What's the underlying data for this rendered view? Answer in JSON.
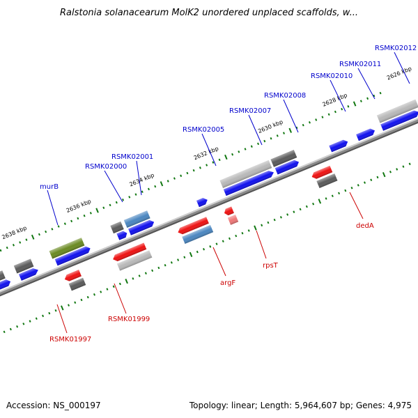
{
  "title": "Ralstonia solanacearum MolK2 unordered unplaced scaffolds, w...",
  "footer": {
    "accession": "Accession: NS_000197",
    "topology": "Topology: linear; Length: 5,964,607 bp; Genes: 4,975"
  },
  "colors": {
    "forward_label": "#0000cc",
    "reverse_label": "#cc0000",
    "tick": "#117711",
    "backbone": "#888888",
    "blue": "#1010ee",
    "red": "#ee1111",
    "pink": "#ee7777",
    "gray": "#5a5a5a",
    "lightgray": "#b8b8b8",
    "steelblue": "#4a86c0",
    "olive": "#6a8a22"
  },
  "kbp_labels": [
    "2638 kbp",
    "2636 kbp",
    "2634 kbp",
    "2632 kbp",
    "2630 kbp",
    "2628 kbp",
    "2626 kbp"
  ],
  "forward_labels": [
    "murB",
    "RSMK02000",
    "RSMK02001",
    "RSMK02005",
    "RSMK02007",
    "RSMK02008",
    "RSMK02010",
    "RSMK02011",
    "RSMK02012"
  ],
  "reverse_labels": [
    "RSMK01997",
    "RSMK01999",
    "argF",
    "rpsT",
    "dedA"
  ]
}
